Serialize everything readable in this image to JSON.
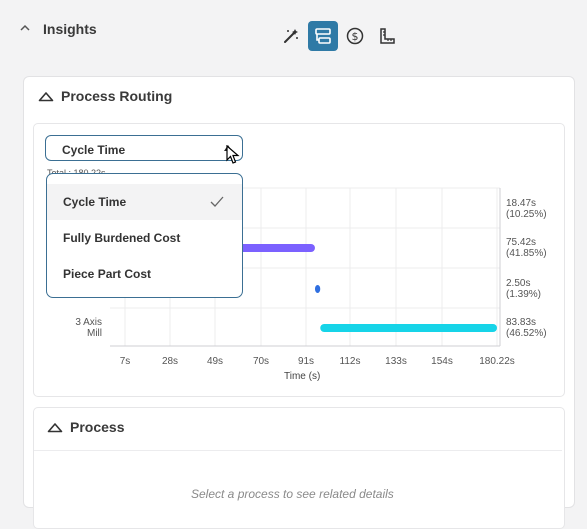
{
  "header": {
    "title": "Insights"
  },
  "toolbar": {
    "icons": [
      "magic-wand-icon",
      "routing-icon",
      "dollar-icon",
      "ruler-icon"
    ],
    "active": "routing-icon"
  },
  "routing": {
    "title": "Process Routing",
    "select": {
      "value": "Cycle Time",
      "total": "Total : 180.22s"
    },
    "options": [
      "Cycle Time",
      "Fully Burdened Cost",
      "Piece Part Cost"
    ],
    "selected_index": 0
  },
  "chart_data": {
    "type": "bar",
    "orientation": "horizontal-gantt",
    "xlabel": "Time (s)",
    "xticks": [
      "7s",
      "28s",
      "49s",
      "70s",
      "91s",
      "112s",
      "133s",
      "154s",
      "180.22s"
    ],
    "rows": [
      {
        "name": "",
        "start": 0,
        "end": 18.47,
        "value_label": "18.47s",
        "pct_label": "(10.25%)",
        "color": "#2d8fd6"
      },
      {
        "name": "",
        "start": 18.47,
        "end": 93.89,
        "value_label": "75.42s",
        "pct_label": "(41.85%)",
        "color": "#7b61ff"
      },
      {
        "name": "",
        "start": 93.89,
        "end": 96.39,
        "value_label": "2.50s",
        "pct_label": "(1.39%)",
        "color": "#2f6fe0"
      },
      {
        "name": "3 Axis\nMill",
        "start": 96.39,
        "end": 180.22,
        "value_label": "83.83s",
        "pct_label": "(46.52%)",
        "color": "#16d4e8"
      }
    ],
    "xlim": [
      0,
      180.22
    ],
    "grid": true
  },
  "process": {
    "title": "Process",
    "hint": "Select a process to see related details"
  }
}
